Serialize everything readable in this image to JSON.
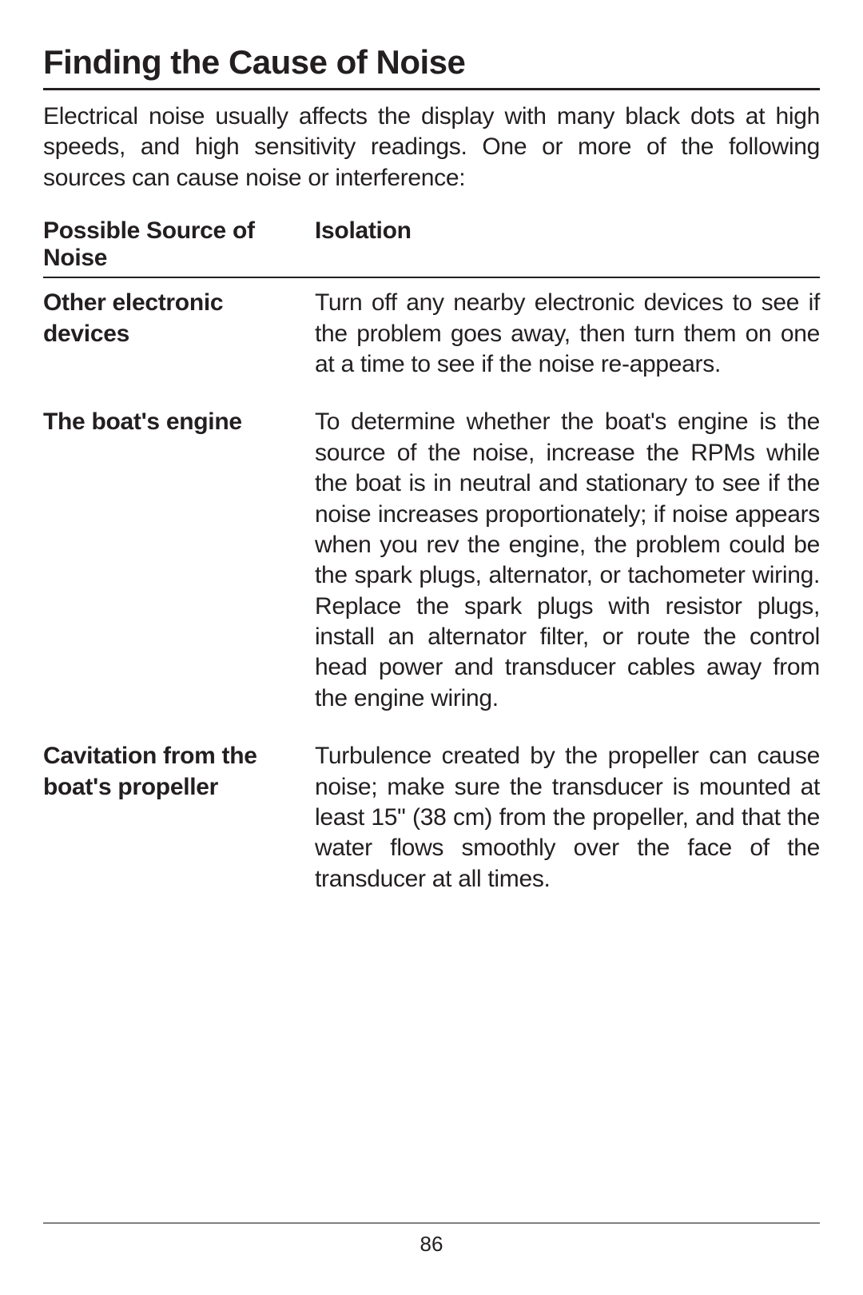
{
  "title": "Finding the Cause of Noise",
  "intro": "Electrical noise usually affects the display with many black dots at high speeds, and high sensitivity readings. One or more of the following sources can cause noise or interference:",
  "table": {
    "headers": {
      "source": "Possible Source of Noise",
      "isolation": "Isolation"
    },
    "rows": [
      {
        "source": "Other electronic devices",
        "isolation": "Turn off any nearby electronic devices to see if the problem goes away, then turn them on one at a time to see if the noise re-appears."
      },
      {
        "source": "The boat's engine",
        "isolation": "To determine whether the boat's engine is the source of the noise, increase the RPMs while the boat is in neutral and stationary to see if the noise increases proportionately; if noise appears when you rev the engine, the problem could be the spark plugs, alternator, or tachometer wiring. Replace the spark plugs with resistor plugs, install an alternator filter, or route the control head power and transducer cables away from the engine wiring."
      },
      {
        "source": "Cavitation from the boat's propeller",
        "isolation": "Turbulence created by the propeller can cause noise; make sure the transducer is mounted at least 15\" (38 cm) from the propeller, and that the water flows smoothly over the face of the transducer at all times."
      }
    ]
  },
  "page_number": "86"
}
